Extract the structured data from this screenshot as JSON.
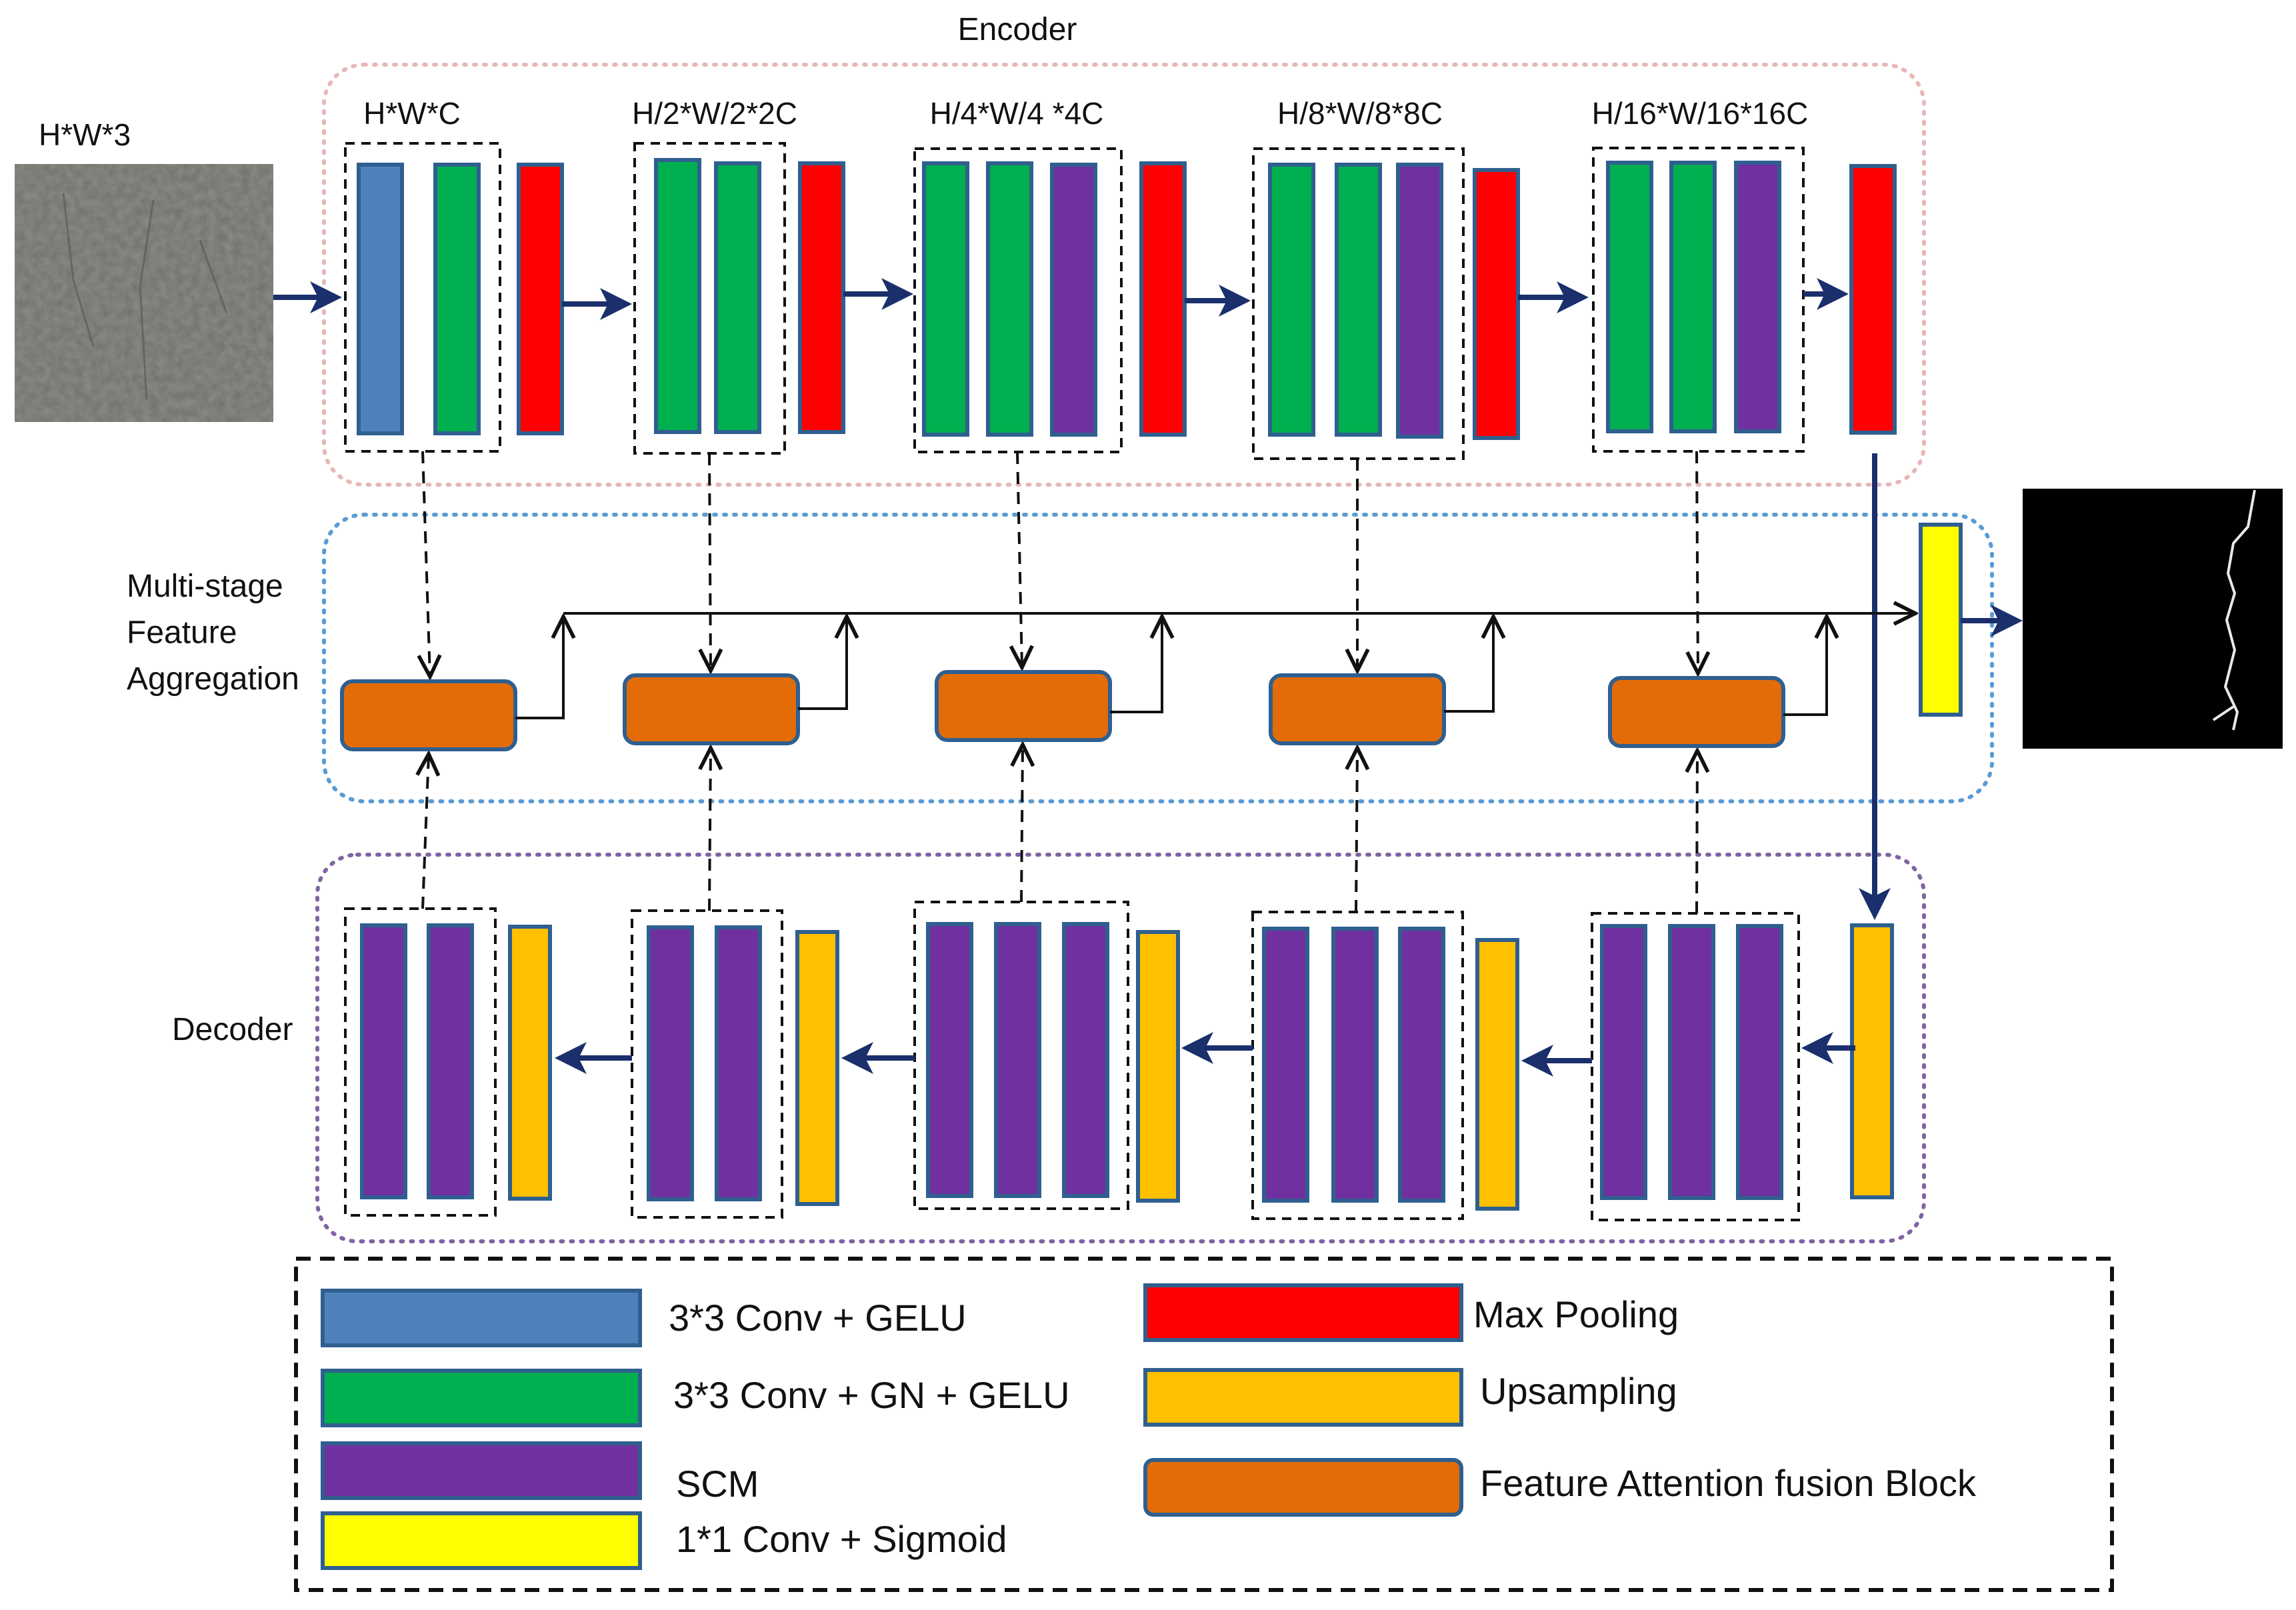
{
  "colors": {
    "conv_gelu": "#4f81bd",
    "conv_gn_gelu": "#00b050",
    "max_pooling": "#ff0000",
    "upsampling": "#ffc000",
    "scm": "#7030a0",
    "conv_sigmoid": "#ffff00",
    "fusion_block": "#e36c09",
    "block_outline": "#2f5f8f",
    "flow_arrow": "#1a2f6b",
    "encoder_border": "#e6b8b7",
    "aggregation_border": "#5b9bd5",
    "decoder_border": "#8064a2"
  },
  "regions": {
    "encoder": "Encoder",
    "aggregation": "Multi-stage\nFeature\nAggregation",
    "decoder": "Decoder"
  },
  "input_label": "H*W*3",
  "stage_labels": [
    "H*W*C",
    "H/2*W/2*2C",
    "H/4*W/4 *4C",
    "H/8*W/8*8C",
    "H/16*W/16*16C"
  ],
  "legend": {
    "conv_gelu": "3*3 Conv + GELU",
    "conv_gn_gelu": "3*3 Conv + GN + GELU",
    "scm": "SCM",
    "conv_sigmoid": "1*1 Conv + Sigmoid",
    "max_pooling": "Max Pooling",
    "upsampling": "Upsampling",
    "fusion_block": "Feature Attention fusion Block"
  },
  "icons": {
    "input_image": "crack-input-image",
    "output_image": "crack-mask-output-image"
  }
}
